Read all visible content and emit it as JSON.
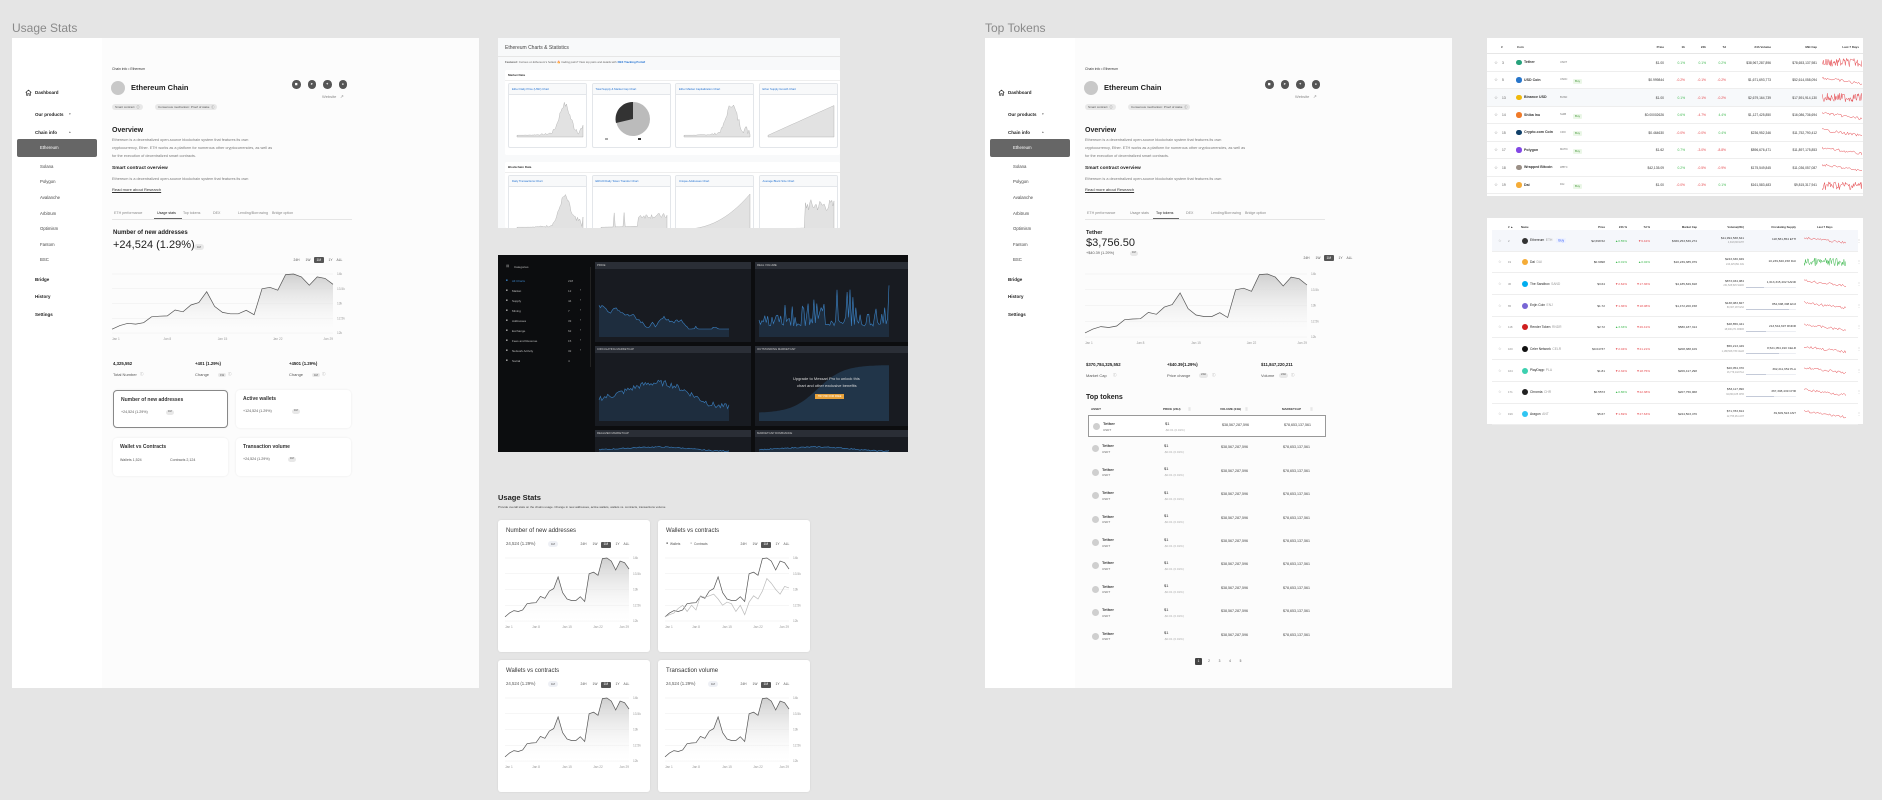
{
  "canvas": {
    "usage_label": "Usage Stats",
    "tokens_label": "Top Tokens"
  },
  "chain_page": {
    "sidebar": {
      "dashboard": "Dashboard",
      "our_products": "Our products",
      "chain_info": "Chain info",
      "chains": [
        "Ethereum",
        "Solana",
        "Polygon",
        "Avalanche",
        "Arbitrum",
        "Optimism",
        "Fantom",
        "BSC"
      ],
      "bridge": "Bridge",
      "history": "History",
      "settings": "Settings"
    },
    "breadcrumb": "Chain info • Ethereum",
    "title": "Ethereum Chain",
    "website": "Website",
    "tags": [
      "Smart contract",
      "Consensus mechanism: Proof of stake"
    ],
    "overview_title": "Overview",
    "overview_lines": [
      "Ethereum is a decentralized open-source blockchain system that features its own",
      "cryptocurrency, Ether. ETH works as a platform for numerous other cryptocurrencies, as well as",
      "for the execution of decentralized smart contracts."
    ],
    "smart_title": "Smart contract overview",
    "smart_text": "Ethereum is a decentralized open-source blockchain system that features its own",
    "read_more": "Read more about Research",
    "tabs": [
      "ETH performance",
      "Usage stats",
      "Top tokens",
      "DEX",
      "Lending/Borrowing",
      "Bridge option"
    ],
    "ranges": [
      "24H",
      "1W",
      "1M",
      "1Y",
      "ALL"
    ],
    "selected_range": "1M"
  },
  "usage_frame": {
    "active_tab": 1,
    "chart_title": "Number of new addresses",
    "big_value": "+24,524 (1.29%)",
    "big_badge": "1M",
    "stats": [
      {
        "value": "4,325,552",
        "label": "Total Number",
        "badge": ""
      },
      {
        "value": "+401 (1.29%)",
        "label": "Change",
        "badge": "1W"
      },
      {
        "value": "+4501 (1.29%)",
        "label": "Change",
        "badge": "1M"
      }
    ],
    "cards": [
      {
        "title": "Number of new addresses",
        "value": "+24,524 (1.29%)",
        "badge": "1M"
      },
      {
        "title": "Active wallets",
        "value": "+124,524 (1.29%)",
        "badge": "1M"
      },
      {
        "title": "Wallet vs Contracts",
        "wallets": "Wallets 1,524",
        "contracts": "Contracts  2,124"
      },
      {
        "title": "Transaction volume",
        "value": "+24,524 (1.29%)",
        "badge": "1M"
      }
    ]
  },
  "tokens_frame": {
    "active_tab": 2,
    "chart_title": "Tether",
    "big_value": "$3,756.50",
    "sub_value": "+$40.39 (1.29%)",
    "sub_badge": "1M",
    "stats": [
      {
        "value": "$370,784,325,552",
        "label": "Market Cap",
        "badge": ""
      },
      {
        "value": "+$40.39(1.29%)",
        "label": "Price change",
        "badge": "24H"
      },
      {
        "value": "$11,847,220,211",
        "label": "Volume",
        "badge": "24H"
      }
    ],
    "table_title": "Top tokens",
    "columns": [
      "ASSET",
      "PRICE (24H)",
      "VOLUME (24H)",
      "MARKETCAP"
    ],
    "rows": [
      {
        "name": "Tether",
        "symbol": "USDT",
        "price": "$1",
        "change": "-$0.01 (0.01%)",
        "volume": "$38,567,287,596",
        "marketcap": "$78,653,137,561"
      },
      {
        "name": "Tether",
        "symbol": "USDT",
        "price": "$1",
        "change": "-$0.01 (0.01%)",
        "volume": "$38,567,287,596",
        "marketcap": "$78,653,137,561"
      },
      {
        "name": "Tether",
        "symbol": "USDT",
        "price": "$1",
        "change": "-$0.01 (0.01%)",
        "volume": "$38,567,287,596",
        "marketcap": "$78,653,137,561"
      },
      {
        "name": "Tether",
        "symbol": "USDT",
        "price": "$1",
        "change": "-$0.01 (0.01%)",
        "volume": "$38,567,287,596",
        "marketcap": "$78,653,137,561"
      },
      {
        "name": "Tether",
        "symbol": "USDT",
        "price": "$1",
        "change": "-$0.01 (0.01%)",
        "volume": "$38,567,287,596",
        "marketcap": "$78,653,137,561"
      },
      {
        "name": "Tether",
        "symbol": "USDT",
        "price": "$1",
        "change": "-$0.01 (0.01%)",
        "volume": "$38,567,287,596",
        "marketcap": "$78,653,137,561"
      },
      {
        "name": "Tether",
        "symbol": "USDT",
        "price": "$1",
        "change": "-$0.01 (0.01%)",
        "volume": "$38,567,287,596",
        "marketcap": "$78,653,137,561"
      },
      {
        "name": "Tether",
        "symbol": "USDT",
        "price": "$1",
        "change": "-$0.01 (0.01%)",
        "volume": "$38,567,287,596",
        "marketcap": "$78,653,137,561"
      },
      {
        "name": "Tether",
        "symbol": "USDT",
        "price": "$1",
        "change": "-$0.01 (0.01%)",
        "volume": "$38,567,287,596",
        "marketcap": "$78,653,137,561"
      },
      {
        "name": "Tether",
        "symbol": "USDT",
        "price": "$1",
        "change": "-$0.01 (0.01%)",
        "volume": "$38,567,287,596",
        "marketcap": "$78,653,137,561"
      }
    ],
    "pages": [
      "1",
      "2",
      "3",
      "4",
      "5"
    ],
    "current_page": "1"
  },
  "chart_data": {
    "type": "area",
    "x": [
      "Jan 1",
      "Jan 2",
      "Jan 3",
      "Jan 4",
      "Jan 5",
      "Jan 6",
      "Jan 7",
      "Jan 8",
      "Jan 9",
      "Jan 10",
      "Jan 11",
      "Jan 12",
      "Jan 13",
      "Jan 14",
      "Jan 15",
      "Jan 16",
      "Jan 17",
      "Jan 18",
      "Jan 19",
      "Jan 20",
      "Jan 21",
      "Jan 22",
      "Jan 23",
      "Jan 24",
      "Jan 25",
      "Jan 26",
      "Jan 27",
      "Jan 28",
      "Jan 29"
    ],
    "x_ticks": [
      "Jan 1",
      "Jan 8",
      "Jan 15",
      "Jan 22",
      "Jan 29"
    ],
    "y_ticks": [
      "14k",
      "13.5k",
      "13k",
      "12.5k",
      "12k"
    ],
    "ylim": [
      12,
      14
    ],
    "y_unit": "thousands",
    "grid": true,
    "series": [
      {
        "name": "Wallets",
        "values": [
          12.13,
          12.25,
          12.33,
          12.3,
          12.35,
          12.55,
          12.57,
          12.58,
          12.78,
          12.72,
          12.95,
          13.03,
          13.4,
          12.9,
          12.7,
          12.65,
          12.65,
          12.77,
          12.62,
          13.5,
          13.55,
          13.45,
          13.98,
          14.02,
          13.9,
          13.62,
          13.9,
          13.85,
          13.65
        ]
      },
      {
        "name": "Contracts",
        "values": [
          12.13,
          12.2,
          12.25,
          12.4,
          12.5,
          12.3,
          12.5,
          12.35,
          12.8,
          12.75,
          12.8,
          12.85,
          12.7,
          12.5,
          12.6,
          12.55,
          12.3,
          12.5,
          12.2,
          12.6,
          12.8,
          12.7,
          12.95,
          13.35,
          13.2,
          13.0,
          12.85,
          13.1,
          13.05
        ]
      }
    ]
  },
  "usage_section": {
    "title": "Usage Stats",
    "subtitle": "Provide overall stats on the chains usage. Change in new addresses, active wallets, wallets vs. contracts, transactions volume",
    "cards": [
      {
        "title": "Number of new addresses",
        "value": "24,524 (1.29%)",
        "badge": "1M"
      },
      {
        "title": "Wallets vs contracts",
        "legend": [
          "Wallets",
          "Contracts"
        ]
      },
      {
        "title": "Wallets vs contracts",
        "value": "24,524 (1.29%)",
        "badge": "1M"
      },
      {
        "title": "Transaction volume",
        "value": "24,524 (1.29%)",
        "badge": "1M"
      }
    ]
  },
  "etherscan": {
    "title": "Ethereum Charts & Statistics",
    "featured_label": "Featured:",
    "featured_text": "Curious on Ethereum's hottest 🔥 trading pairs? View top pairs and details with",
    "featured_link": "DEX Tracking Portal!",
    "sections": [
      {
        "title": "Market Data",
        "cards": [
          "Ether Daily Price (USD) Chart",
          "Total Supply & Market Cap Chart",
          "Ether Market Capitalization Chart",
          "Ether Supply Growth Chart"
        ]
      },
      {
        "title": "Blockchain Data",
        "cards": [
          "Daily Transactions Chart",
          "ERC20 Daily Token Transfer Chart",
          "Unique Addresses Chart",
          "Average Block Size Chart"
        ]
      }
    ]
  },
  "messari": {
    "categories_label": "Categories",
    "categories": [
      {
        "label": "All Charts",
        "count": "218"
      },
      {
        "label": "Market",
        "count": "12"
      },
      {
        "label": "Supply",
        "count": "44"
      },
      {
        "label": "Mining",
        "count": "7"
      },
      {
        "label": "Addresses",
        "count": "33"
      },
      {
        "label": "Exchange",
        "count": "62"
      },
      {
        "label": "Fees and Revenue",
        "count": "15"
      },
      {
        "label": "Network Activity",
        "count": "32"
      },
      {
        "label": "Social",
        "count": "4"
      }
    ],
    "panels": [
      "PRICE",
      "REAL VOLUME",
      "CIRCULATING MARKETCAP",
      "OUTSTANDING MARKETCAP",
      "REALIZED MARKETCAP",
      "MARKETCAP DOMINANCE"
    ],
    "upgrade_lines": [
      "Upgrade to Messari Pro to unlock this",
      "chart and other exclusive benefits"
    ],
    "upgrade_button": "TRY PRO FOR FREE",
    "accent": "#3b82c4",
    "cta_color": "#e8a23a"
  },
  "coin_table": {
    "columns": [
      "#",
      "Coin",
      "Price",
      "1h",
      "24h",
      "7d",
      "24h Volume",
      "Mkt Cap",
      "Last 7 Days"
    ],
    "buy_label": "Buy",
    "rows": [
      {
        "rank": "3",
        "name": "Tether",
        "symbol": "USDT",
        "buy": false,
        "icon_color": "#26a17b",
        "price": "$1.00",
        "h1": "0.1%",
        "h24": "0.1%",
        "d7": "0.2%",
        "volume": "$38,967,287,896",
        "mcap": "$78,653,137,981",
        "trend": "up"
      },
      {
        "rank": "5",
        "name": "USD Coin",
        "symbol": "USDC",
        "buy": true,
        "icon_color": "#2775ca",
        "price": "$0.999844",
        "h1": "-0.2%",
        "h24": "-0.1%",
        "d7": "-0.2%",
        "volume": "$1,671,693,773",
        "mcap": "$52,614,058,094",
        "trend": "down"
      },
      {
        "rank": "13",
        "name": "Binance USD",
        "symbol": "BUSD",
        "buy": false,
        "icon_color": "#f0b90b",
        "price": "$1.00",
        "h1": "0.1%",
        "h24": "-0.1%",
        "d7": "-0.2%",
        "volume": "$2,679,164,739",
        "mcap": "$17,591,914,130",
        "trend": "down"
      },
      {
        "rank": "14",
        "name": "Shiba Inu",
        "symbol": "SHIB",
        "buy": true,
        "icon_color": "#f07a28",
        "price": "$0.00002626",
        "h1": "0.6%",
        "h24": "-4.7%",
        "d7": "4.4%",
        "volume": "$1,127,425,850",
        "mcap": "$16,086,736,694",
        "trend": "down"
      },
      {
        "rank": "15",
        "name": "Crypto.com Coin",
        "symbol": "CRO",
        "buy": true,
        "icon_color": "#103f68",
        "price": "$0.464630",
        "h1": "-0.0%",
        "h24": "-0.0%",
        "d7": "0.4%",
        "volume": "$236,952,346",
        "mcap": "$11,752,790,412",
        "trend": "down"
      },
      {
        "rank": "17",
        "name": "Polygon",
        "symbol": "MATIC",
        "buy": true,
        "icon_color": "#8247e5",
        "price": "$1.62",
        "h1": "0.7%",
        "h24": "-3.0%",
        "d7": "-8.8%",
        "volume": "$896,676,471",
        "mcap": "$11,897,175,853",
        "trend": "down"
      },
      {
        "rank": "18",
        "name": "Wrapped Bitcoin",
        "symbol": "WBTC",
        "buy": false,
        "icon_color": "#9a8f86",
        "price": "$42,135.09",
        "h1": "0.2%",
        "h24": "-0.5%",
        "d7": "-0.9%",
        "volume": "$175,549,845",
        "mcap": "$11,036,057,087",
        "trend": "down"
      },
      {
        "rank": "19",
        "name": "Dai",
        "symbol": "DAI",
        "buy": true,
        "icon_color": "#f5ac37",
        "price": "$1.00",
        "h1": "-0.0%",
        "h24": "-0.3%",
        "d7": "0.1%",
        "volume": "$161,583,483",
        "mcap": "$9,815,317,941",
        "trend": "down"
      }
    ]
  },
  "market_table": {
    "columns": [
      "# ▲",
      "Name",
      "Price",
      "24h %",
      "7d %",
      "Market Cap",
      "Volume(24h)",
      "Circulating Supply",
      "Last 7 Days"
    ],
    "buy_label": "Buy",
    "rows": [
      {
        "rank": "2",
        "name": "Ethereum",
        "symbol": "ETH",
        "buy": true,
        "icon_color": "#333333",
        "price": "$2,698.52",
        "h24": "▲0.55%",
        "d7": "▼6.42%",
        "mcap": "$366,253,536,274",
        "volume": "$11,994,538,641",
        "volume_sub": "4,318,848 ETH",
        "supply": "118,581,854 ETH",
        "supply_pct": 0,
        "trend": "down"
      },
      {
        "rank": "19",
        "name": "Dai",
        "symbol": "DAI",
        "buy": false,
        "icon_color": "#f5ac37",
        "price": "$0.9998",
        "h24": "▲0.01%",
        "d7": "▲0.02%",
        "mcap": "$10,239,385,079",
        "volume": "$243,330,949",
        "volume_sub": "243,425,891 DAI",
        "supply": "10,239,840,158 DAI",
        "supply_pct": 0,
        "trend": "up"
      },
      {
        "rank": "36",
        "name": "The Sandbox",
        "symbol": "SAND",
        "buy": false,
        "icon_color": "#00adef",
        "price": "$3.64",
        "h24": "▼2.62%",
        "d7": "▼17.36%",
        "mcap": "$4,185,849,818",
        "volume": "$873,034,084",
        "volume_sub": "231,528,529 SAND",
        "supply": "1,613,315,402 SAND",
        "supply_pct": 35,
        "trend": "down"
      },
      {
        "rank": "65",
        "name": "Enjin Coin",
        "symbol": "ENJ",
        "buy": false,
        "icon_color": "#7866d5",
        "price": "$1.72",
        "h24": "▼1.36%",
        "d7": "▼18.08%",
        "mcap": "$1,472,200,158",
        "volume": "$138,083,827",
        "volume_sub": "80,307,187 ENJ",
        "supply": "854,698,308 ENJ",
        "supply_pct": 85,
        "trend": "down"
      },
      {
        "rank": "118",
        "name": "Render Token",
        "symbol": "RNDR",
        "buy": false,
        "icon_color": "#cf1f1f",
        "price": "$2.72",
        "h24": "▲3.33%",
        "d7": "▼26.41%",
        "mcap": "$580,187,314",
        "volume": "$48,856,441",
        "volume_sub": "18,000,271 RNDR",
        "supply": "213,544,697 RNDR",
        "supply_pct": 40,
        "trend": "down"
      },
      {
        "rank": "160",
        "name": "Celer Network",
        "symbol": "CELR",
        "buy": false,
        "icon_color": "#111111",
        "price": "$0.04737",
        "h24": "▼2.04%",
        "d7": "▼21.21%",
        "mcap": "$208,388,109",
        "volume": "$56,213,449",
        "volume_sub": "1,188,508,735 CELR",
        "supply": "8,521,054,190 CELR",
        "supply_pct": 65,
        "trend": "down"
      },
      {
        "rank": "164",
        "name": "PlayDapp",
        "symbol": "PLA",
        "buy": false,
        "icon_color": "#3dd0b0",
        "price": "$1.81",
        "h24": "▼2.32%",
        "d7": "▼18.75%",
        "mcap": "$206,417,298",
        "volume": "$20,054,370",
        "volume_sub": "16,779,142 PLA",
        "supply": "392,211,652 PLA",
        "supply_pct": 40,
        "trend": "down"
      },
      {
        "rank": "171",
        "name": "Chromia",
        "symbol": "CHR",
        "buy": false,
        "icon_color": "#222222",
        "price": "$0.5573",
        "h24": "▲0.86%",
        "d7": "▼22.38%",
        "mcap": "$207,756,968",
        "volume": "$53,117,990",
        "volume_sub": "94,800,185 CHR",
        "supply": "367,308,439 CHR",
        "supply_pct": 55,
        "trend": "down"
      },
      {
        "rank": "199",
        "name": "Aragon",
        "symbol": "ANT",
        "buy": false,
        "icon_color": "#30c5f2",
        "price": "$5.67",
        "h24": "▼1.69%",
        "d7": "▼27.63%",
        "mcap": "$224,503,476",
        "volume": "$71,783,814",
        "volume_sub": "12,755,261 ANT",
        "supply": "39,609,523 ANT",
        "supply_pct": 0,
        "trend": "down"
      }
    ]
  },
  "colors": {
    "positive": "#3fb950",
    "negative": "#e5484d",
    "active_nav": "#666666",
    "canvas_bg": "#e5e5e5"
  }
}
